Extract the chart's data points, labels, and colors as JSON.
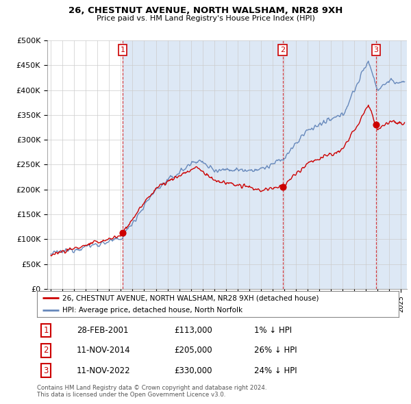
{
  "title": "26, CHESTNUT AVENUE, NORTH WALSHAM, NR28 9XH",
  "subtitle": "Price paid vs. HM Land Registry's House Price Index (HPI)",
  "property_label": "26, CHESTNUT AVENUE, NORTH WALSHAM, NR28 9XH (detached house)",
  "hpi_label": "HPI: Average price, detached house, North Norfolk",
  "transactions": [
    {
      "num": 1,
      "date": "28-FEB-2001",
      "price": 113000,
      "pct": "1%",
      "dir": "↓"
    },
    {
      "num": 2,
      "date": "11-NOV-2014",
      "price": 205000,
      "pct": "26%",
      "dir": "↓"
    },
    {
      "num": 3,
      "date": "11-NOV-2022",
      "price": 330000,
      "pct": "24%",
      "dir": "↓"
    }
  ],
  "transaction_years": [
    2001.16,
    2014.86,
    2022.86
  ],
  "transaction_prices": [
    113000,
    205000,
    330000
  ],
  "footer": "Contains HM Land Registry data © Crown copyright and database right 2024.\nThis data is licensed under the Open Government Licence v3.0.",
  "property_color": "#cc0000",
  "hpi_color": "#6688bb",
  "shade_color": "#dde8f5",
  "ylim": [
    0,
    500000
  ],
  "yticks": [
    0,
    50000,
    100000,
    150000,
    200000,
    250000,
    300000,
    350000,
    400000,
    450000,
    500000
  ],
  "xmin": 1994.7,
  "xmax": 2025.5,
  "background_color": "#ffffff",
  "grid_color": "#cccccc"
}
